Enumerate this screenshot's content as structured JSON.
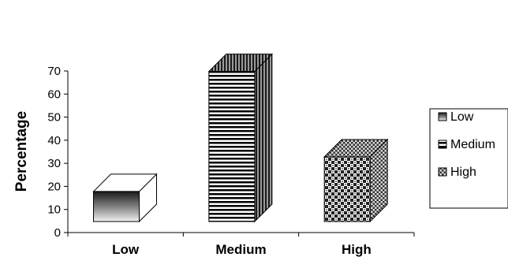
{
  "chart_data": {
    "type": "bar",
    "categories": [
      "Low",
      "Medium",
      "High"
    ],
    "values": [
      13,
      65,
      28
    ],
    "title": "",
    "xlabel": "",
    "ylabel": "Percentage",
    "ylim": [
      0,
      70
    ],
    "yticks": [
      0,
      10,
      20,
      30,
      40,
      50,
      60,
      70
    ],
    "grid": false,
    "bar_style": "3d",
    "legend_position": "right",
    "legend": [
      "Low",
      "Medium",
      "High"
    ]
  }
}
